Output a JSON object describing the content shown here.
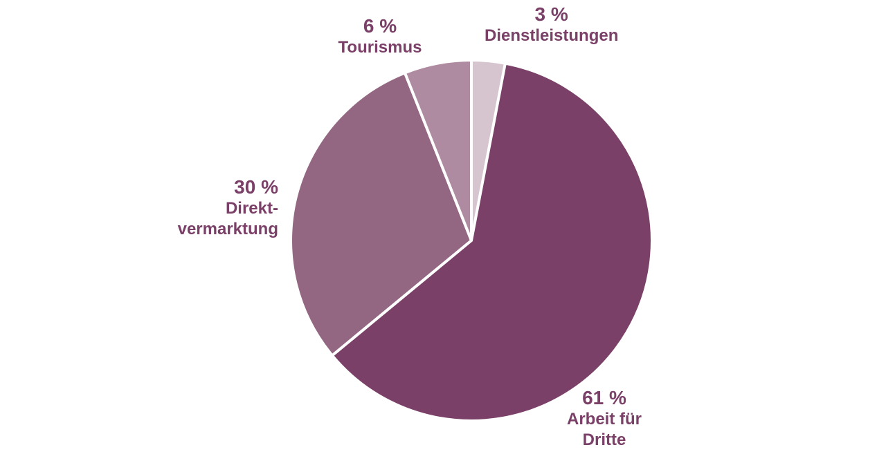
{
  "chart_data": {
    "type": "pie",
    "slices": [
      {
        "pct_label": "3 %",
        "value": 3,
        "name_lines": [
          "Dienstleistungen"
        ],
        "color": "#d6c4cf"
      },
      {
        "pct_label": "61 %",
        "value": 61,
        "name_lines": [
          "Arbeit für",
          "Dritte"
        ],
        "color": "#7a4068"
      },
      {
        "pct_label": "30 %",
        "value": 30,
        "name_lines": [
          "Direkt-",
          "vermarktung"
        ],
        "color": "#936782"
      },
      {
        "pct_label": "6 %",
        "value": 6,
        "name_lines": [
          "Tourismus"
        ],
        "color": "#ae8ba1"
      }
    ],
    "start": "12 o'clock",
    "direction": "clockwise",
    "label_color": "#7a4068",
    "separator_color": "#ffffff"
  }
}
